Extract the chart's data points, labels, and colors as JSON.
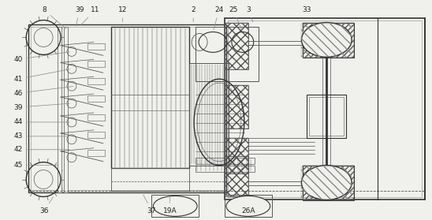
{
  "bg_color": "#f0f0ec",
  "lc": "#555555",
  "lc2": "#333333",
  "lc3": "#888888",
  "figsize": [
    5.48,
    2.79
  ],
  "dpi": 100
}
